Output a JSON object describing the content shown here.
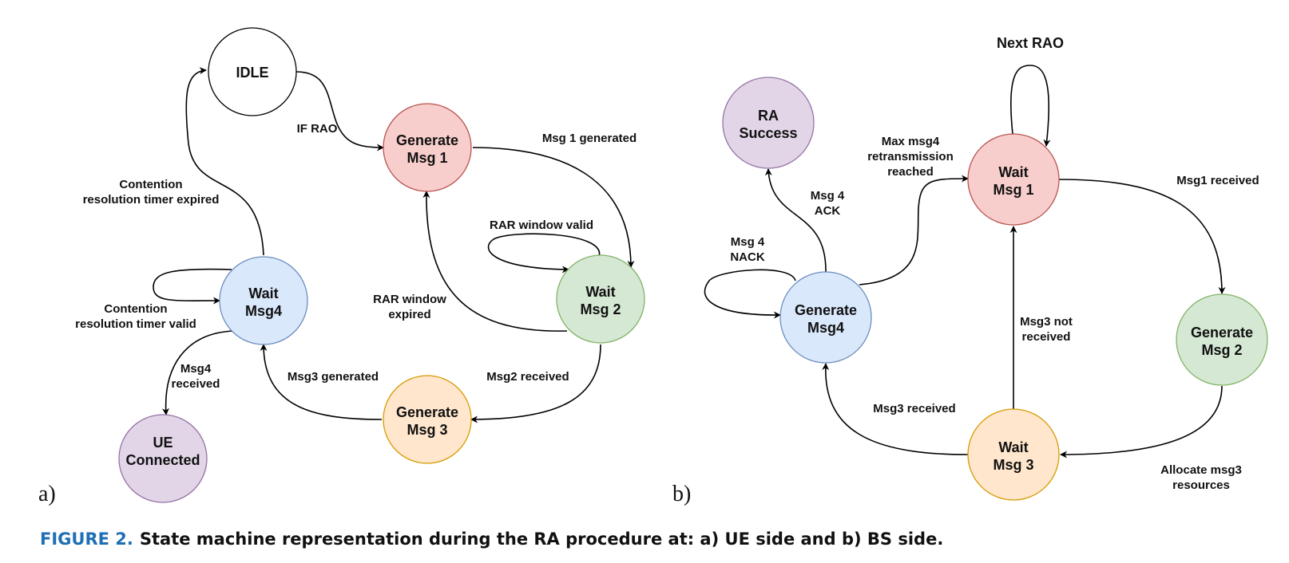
{
  "panels": [
    {
      "label": "a)",
      "nodes": [
        {
          "id": "a-idle",
          "lines": [
            "IDLE"
          ],
          "fill": "#ffffff",
          "stroke": "#000000"
        },
        {
          "id": "a-gen1",
          "lines": [
            "Generate",
            "Msg 1"
          ],
          "fill": "#f8cecc",
          "stroke": "#b85450"
        },
        {
          "id": "a-wait2",
          "lines": [
            "Wait",
            "Msg 2"
          ],
          "fill": "#d5e8d4",
          "stroke": "#82b366"
        },
        {
          "id": "a-gen3",
          "lines": [
            "Generate",
            "Msg 3"
          ],
          "fill": "#ffe6cc",
          "stroke": "#d79b00"
        },
        {
          "id": "a-wait4",
          "lines": [
            "Wait",
            "Msg4"
          ],
          "fill": "#dae8fc",
          "stroke": "#6c8ebf"
        },
        {
          "id": "a-ue",
          "lines": [
            "UE",
            "Connected"
          ],
          "fill": "#e1d5e7",
          "stroke": "#9673a6"
        }
      ],
      "edges": [
        {
          "id": "a-e1",
          "lines": [
            "IF RAO"
          ]
        },
        {
          "id": "a-e2",
          "lines": [
            "Msg 1 generated"
          ]
        },
        {
          "id": "a-e3",
          "lines": [
            "RAR window valid"
          ]
        },
        {
          "id": "a-e4",
          "lines": [
            "RAR window",
            "expired"
          ]
        },
        {
          "id": "a-e5",
          "lines": [
            "Msg2 received"
          ]
        },
        {
          "id": "a-e6",
          "lines": [
            "Msg3 generated"
          ]
        },
        {
          "id": "a-e7",
          "lines": [
            "Contention",
            "resolution timer expired"
          ]
        },
        {
          "id": "a-e8",
          "lines": [
            "Contention",
            "resolution timer valid"
          ]
        },
        {
          "id": "a-e9",
          "lines": [
            "Msg4",
            "received"
          ]
        }
      ]
    },
    {
      "label": "b)",
      "nodes": [
        {
          "id": "b-wait1",
          "lines": [
            "Wait",
            "Msg 1"
          ],
          "fill": "#f8cecc",
          "stroke": "#b85450"
        },
        {
          "id": "b-gen2",
          "lines": [
            "Generate",
            "Msg 2"
          ],
          "fill": "#d5e8d4",
          "stroke": "#82b366"
        },
        {
          "id": "b-wait3",
          "lines": [
            "Wait",
            "Msg 3"
          ],
          "fill": "#ffe6cc",
          "stroke": "#d79b00"
        },
        {
          "id": "b-gen4",
          "lines": [
            "Generate",
            "Msg4"
          ],
          "fill": "#dae8fc",
          "stroke": "#6c8ebf"
        },
        {
          "id": "b-success",
          "lines": [
            "RA",
            "Success"
          ],
          "fill": "#e1d5e7",
          "stroke": "#9673a6"
        }
      ],
      "edges": [
        {
          "id": "b-e1",
          "lines": [
            "Next RAO"
          ]
        },
        {
          "id": "b-e2",
          "lines": [
            "Msg1 received"
          ]
        },
        {
          "id": "b-e3",
          "lines": [
            "Allocate msg3",
            "resources"
          ]
        },
        {
          "id": "b-e4",
          "lines": [
            "Msg3 not",
            "received"
          ]
        },
        {
          "id": "b-e5",
          "lines": [
            "Msg3 received"
          ]
        },
        {
          "id": "b-e6",
          "lines": [
            "Max msg4",
            "retransmission",
            "reached"
          ]
        },
        {
          "id": "b-e7",
          "lines": [
            "Msg 4",
            "ACK"
          ]
        },
        {
          "id": "b-e8",
          "lines": [
            "Msg 4",
            "NACK"
          ]
        }
      ]
    }
  ],
  "caption": {
    "label": "FIGURE 2.",
    "text": "State machine representation during the RA procedure at: a) UE side and b) BS side."
  }
}
